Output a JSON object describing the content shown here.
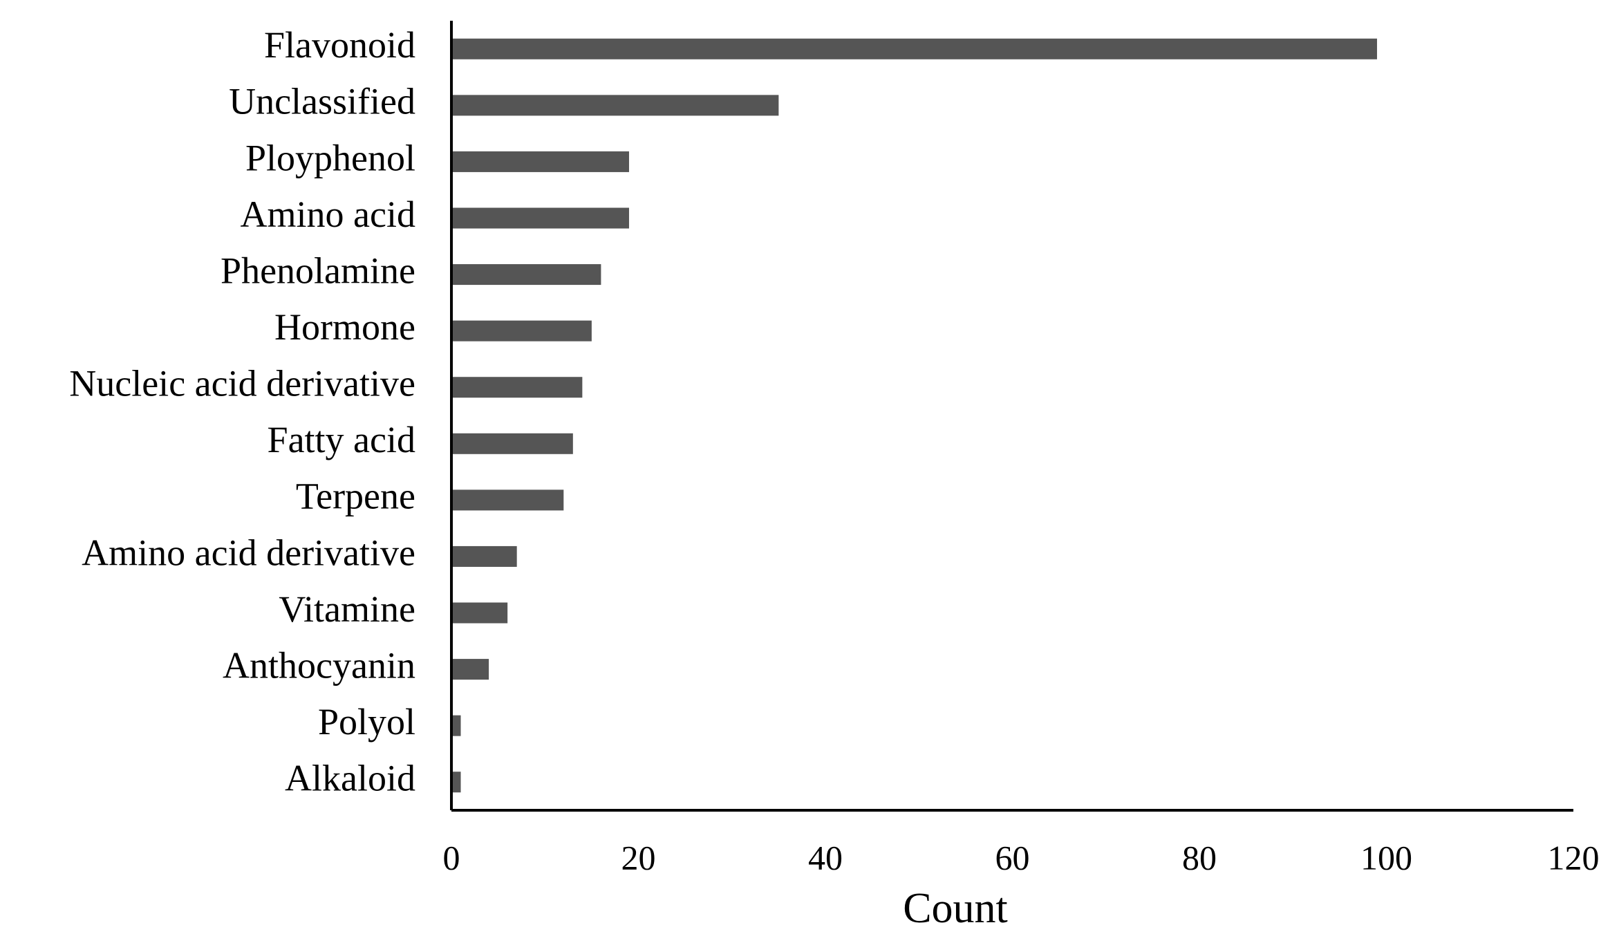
{
  "chart_data": {
    "type": "bar",
    "orientation": "horizontal",
    "categories": [
      "Flavonoid",
      "Unclassified",
      "Ployphenol",
      "Amino acid",
      "Phenolamine",
      "Hormone",
      "Nucleic acid derivative",
      "Fatty acid",
      "Terpene",
      "Amino acid derivative",
      "Vitamine",
      "Anthocyanin",
      "Polyol",
      "Alkaloid"
    ],
    "values": [
      99,
      35,
      19,
      19,
      16,
      15,
      14,
      13,
      12,
      7,
      6,
      4,
      1,
      1
    ],
    "color": "#555555",
    "x_label": "Count",
    "xlim": [
      0,
      120
    ],
    "xticks": [
      0,
      20,
      40,
      60,
      80,
      100,
      120
    ],
    "grid": false
  }
}
